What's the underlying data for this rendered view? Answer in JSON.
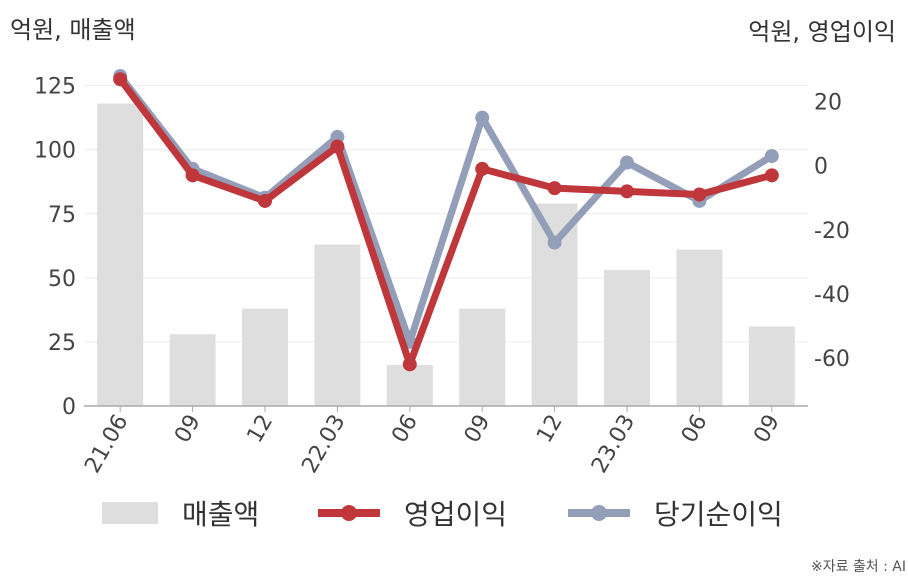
{
  "chart_data": {
    "type": "bar+line",
    "left_axis_label": "억원, 매출액",
    "right_axis_label": "억원, 영업이익",
    "categories": [
      "21.06",
      "09",
      "12",
      "22.03",
      "06",
      "09",
      "12",
      "23.03",
      "06",
      "09"
    ],
    "left_ylim": [
      0,
      135
    ],
    "left_ticks": [
      0,
      25,
      50,
      75,
      100,
      125
    ],
    "right_ylim": [
      -75,
      33
    ],
    "right_ticks": [
      -60,
      -40,
      -20,
      0,
      20
    ],
    "grid": true,
    "legend_position": "bottom",
    "series": [
      {
        "name": "매출액",
        "kind": "bar",
        "axis": "left",
        "color": "#dedede",
        "values": [
          118,
          28,
          38,
          63,
          16,
          38,
          79,
          53,
          61,
          31
        ]
      },
      {
        "name": "영업이익",
        "kind": "line",
        "axis": "right",
        "color": "#c0373b",
        "values": [
          27,
          -3,
          -11,
          6,
          -62,
          -1,
          -7,
          -8,
          -9,
          -3
        ]
      },
      {
        "name": "당기순이익",
        "kind": "line",
        "axis": "right",
        "color": "#939fb8",
        "values": [
          28,
          -1,
          -10,
          9,
          -55,
          15,
          -24,
          1,
          -11,
          3
        ]
      }
    ],
    "source": "※자료 출처 : AI"
  }
}
